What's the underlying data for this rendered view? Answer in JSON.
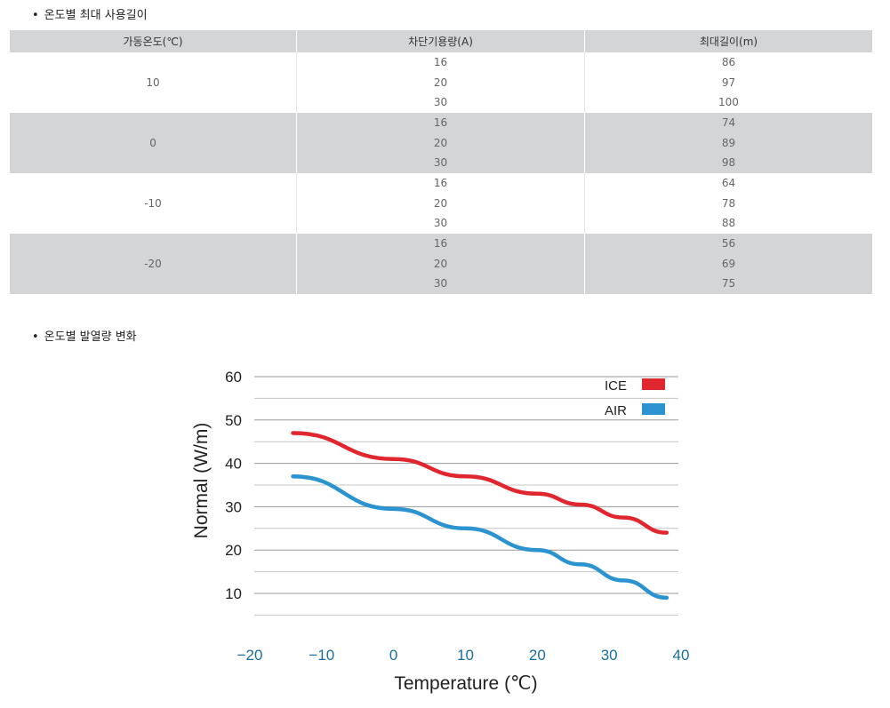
{
  "section1": {
    "bullet": "•",
    "title": "온도별 최대 사용길이"
  },
  "table": {
    "headers": [
      "가동온도(℃)",
      "차단기용량(A)",
      "최대길이(m)"
    ],
    "groups": [
      {
        "temp": "10",
        "breakers": [
          "16",
          "20",
          "30"
        ],
        "lengths": [
          "86",
          "97",
          "100"
        ]
      },
      {
        "temp": "0",
        "breakers": [
          "16",
          "20",
          "30"
        ],
        "lengths": [
          "74",
          "89",
          "98"
        ]
      },
      {
        "temp": "-10",
        "breakers": [
          "16",
          "20",
          "30"
        ],
        "lengths": [
          "64",
          "78",
          "88"
        ]
      },
      {
        "temp": "-20",
        "breakers": [
          "16",
          "20",
          "30"
        ],
        "lengths": [
          "56",
          "69",
          "75"
        ]
      }
    ]
  },
  "section2": {
    "bullet": "•",
    "title": "온도별 발열량 변화"
  },
  "chart_data": {
    "type": "line",
    "title": "",
    "xlabel": "Temperature (℃)",
    "ylabel": "Normal (W/m)",
    "xlim": [
      -20,
      40
    ],
    "ylim": [
      5,
      60
    ],
    "xticks": [
      "−20",
      "−10",
      "0",
      "10",
      "20",
      "30",
      "40"
    ],
    "yticks": [
      "60",
      "50",
      "40",
      "30",
      "20",
      "10"
    ],
    "grid": true,
    "legend": "top-right",
    "series": [
      {
        "name": "ICE",
        "color": "#e0262e",
        "x": [
          -14,
          0,
          10,
          20,
          26,
          32,
          38
        ],
        "y": [
          47,
          41,
          37,
          33,
          30.5,
          27.5,
          24
        ]
      },
      {
        "name": "AIR",
        "color": "#2a93d0",
        "x": [
          -14,
          0,
          10,
          20,
          26,
          32,
          38
        ],
        "y": [
          37,
          29.5,
          25,
          20,
          16.7,
          13,
          9
        ]
      }
    ]
  }
}
